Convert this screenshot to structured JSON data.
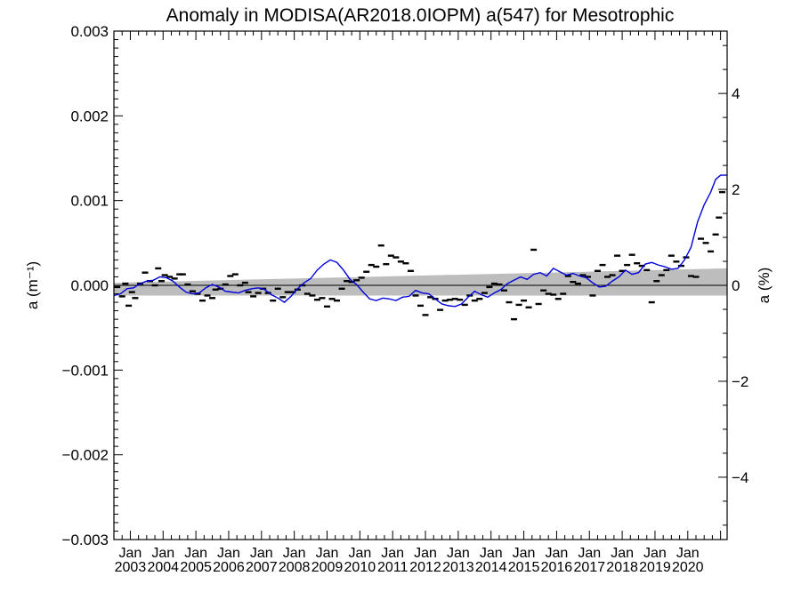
{
  "chart_data": {
    "type": "line",
    "title": "Anomaly in MODISA(AR2018.0IOPM) a(547) for Mesotrophic",
    "ylabel_left": "a (m⁻¹)",
    "ylabel_right": "a (%)",
    "xlim": [
      2002.5,
      2021.2
    ],
    "ylim": [
      -0.003,
      0.003
    ],
    "ylim_right": [
      -5.3,
      5.3
    ],
    "yticks_left": [
      {
        "v": -0.003,
        "label": "−0.003"
      },
      {
        "v": -0.002,
        "label": "−0.002"
      },
      {
        "v": -0.001,
        "label": "−0.001"
      },
      {
        "v": 0,
        "label": "0.000"
      },
      {
        "v": 0.001,
        "label": "0.001"
      },
      {
        "v": 0.002,
        "label": "0.002"
      },
      {
        "v": 0.003,
        "label": "0.003"
      }
    ],
    "yticks_right": [
      {
        "v": -4,
        "label": "−4"
      },
      {
        "v": -2,
        "label": "−2"
      },
      {
        "v": 0,
        "label": "0"
      },
      {
        "v": 2,
        "label": "2"
      },
      {
        "v": 4,
        "label": "4"
      }
    ],
    "xticks": [
      {
        "v": 2003,
        "month": "Jan",
        "year": "2003"
      },
      {
        "v": 2004,
        "month": "Jan",
        "year": "2004"
      },
      {
        "v": 2005,
        "month": "Jan",
        "year": "2005"
      },
      {
        "v": 2006,
        "month": "Jan",
        "year": "2006"
      },
      {
        "v": 2007,
        "month": "Jan",
        "year": "2007"
      },
      {
        "v": 2008,
        "month": "Jan",
        "year": "2008"
      },
      {
        "v": 2009,
        "month": "Jan",
        "year": "2009"
      },
      {
        "v": 2010,
        "month": "Jan",
        "year": "2010"
      },
      {
        "v": 2011,
        "month": "Jan",
        "year": "2011"
      },
      {
        "v": 2012,
        "month": "Jan",
        "year": "2012"
      },
      {
        "v": 2013,
        "month": "Jan",
        "year": "2013"
      },
      {
        "v": 2014,
        "month": "Jan",
        "year": "2014"
      },
      {
        "v": 2015,
        "month": "Jan",
        "year": "2015"
      },
      {
        "v": 2016,
        "month": "Jan",
        "year": "2016"
      },
      {
        "v": 2017,
        "month": "Jan",
        "year": "2017"
      },
      {
        "v": 2018,
        "month": "Jan",
        "year": "2018"
      },
      {
        "v": 2019,
        "month": "Jan",
        "year": "2019"
      },
      {
        "v": 2020,
        "month": "Jan",
        "year": "2020"
      }
    ],
    "band": {
      "x": [
        2002.5,
        2021.2
      ],
      "lower": [
        -0.00012,
        -0.00012
      ],
      "upper": [
        3e-05,
        0.0002
      ]
    },
    "zero_line": 0,
    "series": [
      {
        "type": "line",
        "color": "#0000dd",
        "x": [
          2002.5,
          2002.7,
          2002.9,
          2003.1,
          2003.3,
          2003.5,
          2003.7,
          2003.9,
          2004.1,
          2004.3,
          2004.5,
          2004.7,
          2004.9,
          2005.1,
          2005.3,
          2005.5,
          2005.7,
          2005.9,
          2006.1,
          2006.3,
          2006.5,
          2006.7,
          2006.9,
          2007.1,
          2007.3,
          2007.5,
          2007.7,
          2007.9,
          2008.1,
          2008.3,
          2008.5,
          2008.7,
          2008.9,
          2009.1,
          2009.3,
          2009.5,
          2009.7,
          2009.9,
          2010.1,
          2010.3,
          2010.5,
          2010.7,
          2010.9,
          2011.1,
          2011.3,
          2011.5,
          2011.7,
          2011.9,
          2012.1,
          2012.3,
          2012.5,
          2012.7,
          2012.9,
          2013.1,
          2013.3,
          2013.5,
          2013.7,
          2013.9,
          2014.1,
          2014.3,
          2014.5,
          2014.7,
          2014.9,
          2015.1,
          2015.3,
          2015.5,
          2015.7,
          2015.9,
          2016.1,
          2016.3,
          2016.5,
          2016.7,
          2016.9,
          2017.1,
          2017.3,
          2017.5,
          2017.7,
          2017.9,
          2018.1,
          2018.3,
          2018.5,
          2018.7,
          2018.9,
          2019.1,
          2019.3,
          2019.5,
          2019.7,
          2019.9,
          2020.1,
          2020.3,
          2020.5,
          2020.7,
          2020.85,
          2021.0,
          2021.2
        ],
        "y": [
          -0.00012,
          -0.0001,
          -4e-05,
          -3e-05,
          2e-05,
          5e-05,
          6e-05,
          0.0001,
          9e-05,
          5e-05,
          -2e-05,
          -8e-05,
          -0.0001,
          -9e-05,
          -3e-05,
          1e-05,
          -2e-05,
          -7e-05,
          -8e-05,
          -9e-05,
          -6e-05,
          -4e-05,
          -3e-05,
          -5e-05,
          -0.00011,
          -0.00015,
          -0.0002,
          -0.00013,
          -4e-05,
          3e-05,
          8e-05,
          0.00018,
          0.00025,
          0.0003,
          0.00027,
          0.00018,
          7e-05,
          1e-05,
          -8e-05,
          -0.00016,
          -0.00018,
          -0.00015,
          -0.00016,
          -0.00018,
          -0.00014,
          -0.00013,
          -6e-05,
          -9e-05,
          -0.0001,
          -0.00016,
          -0.00022,
          -0.00024,
          -0.00025,
          -0.00022,
          -0.00014,
          -7e-05,
          -0.00011,
          -0.00014,
          -9e-05,
          -5e-05,
          2e-05,
          6e-05,
          0.0001,
          7e-05,
          0.00013,
          0.00015,
          0.00011,
          0.0002,
          0.00016,
          0.00012,
          0.00014,
          0.00011,
          9e-05,
          3e-05,
          -2e-05,
          -1e-05,
          5e-05,
          0.0001,
          0.00018,
          0.00013,
          0.00015,
          0.00025,
          0.00027,
          0.00024,
          0.00022,
          0.00019,
          0.0002,
          0.0003,
          0.00045,
          0.00075,
          0.00095,
          0.0011,
          0.00125,
          0.0013,
          0.0013
        ]
      },
      {
        "type": "scatter",
        "marker": "dash",
        "color": "#000000",
        "x": [
          2002.6,
          2002.75,
          2002.85,
          2002.95,
          2003.05,
          2003.15,
          2003.3,
          2003.45,
          2003.6,
          2003.75,
          2003.85,
          2003.95,
          2004.05,
          2004.2,
          2004.35,
          2004.5,
          2004.6,
          2004.75,
          2004.9,
          2005.05,
          2005.2,
          2005.35,
          2005.5,
          2005.6,
          2005.75,
          2005.9,
          2006.05,
          2006.2,
          2006.35,
          2006.5,
          2006.6,
          2006.75,
          2006.9,
          2007.05,
          2007.2,
          2007.35,
          2007.5,
          2007.65,
          2007.8,
          2007.95,
          2008.1,
          2008.25,
          2008.4,
          2008.55,
          2008.7,
          2008.85,
          2009.0,
          2009.15,
          2009.3,
          2009.45,
          2009.6,
          2009.75,
          2009.9,
          2010.05,
          2010.2,
          2010.35,
          2010.5,
          2010.65,
          2010.8,
          2010.95,
          2011.1,
          2011.25,
          2011.4,
          2011.55,
          2011.7,
          2011.85,
          2012.0,
          2012.15,
          2012.3,
          2012.45,
          2012.6,
          2012.75,
          2012.9,
          2013.05,
          2013.2,
          2013.35,
          2013.5,
          2013.65,
          2013.8,
          2013.95,
          2014.1,
          2014.25,
          2014.4,
          2014.55,
          2014.7,
          2014.85,
          2015.0,
          2015.15,
          2015.3,
          2015.45,
          2015.6,
          2015.75,
          2015.9,
          2016.05,
          2016.2,
          2016.35,
          2016.5,
          2016.65,
          2016.8,
          2016.95,
          2017.1,
          2017.25,
          2017.4,
          2017.55,
          2017.7,
          2017.85,
          2018.0,
          2018.15,
          2018.3,
          2018.45,
          2018.6,
          2018.75,
          2018.9,
          2019.05,
          2019.2,
          2019.35,
          2019.5,
          2019.65,
          2019.8,
          2019.95,
          2020.1,
          2020.25,
          2020.4,
          2020.55,
          2020.7,
          2020.85,
          2020.95,
          2021.05
        ],
        "y": [
          -2e-05,
          -0.00013,
          2e-05,
          -0.00024,
          -8e-05,
          -0.00015,
          2e-05,
          0.00015,
          5e-05,
          0.0,
          0.0002,
          5e-05,
          0.00012,
          0.0001,
          8e-05,
          0.00013,
          0.00013,
          1e-05,
          -7e-05,
          -0.0001,
          -0.00018,
          -0.00012,
          -0.00015,
          -5e-05,
          -4e-05,
          1e-05,
          0.00011,
          0.00013,
          0.0,
          3e-05,
          -8e-05,
          -0.00013,
          -9e-05,
          -4e-05,
          -9e-05,
          -0.00018,
          -4e-05,
          -0.00014,
          -8e-05,
          -8e-05,
          -5e-05,
          0.0,
          -0.0001,
          -0.00012,
          -0.00017,
          -0.00015,
          -0.00025,
          -0.00016,
          -0.00018,
          -4e-05,
          5e-05,
          4e-05,
          6e-05,
          9e-05,
          0.00016,
          0.00024,
          0.00022,
          0.00047,
          0.00025,
          0.00035,
          0.00033,
          0.00028,
          0.00026,
          0.00017,
          -0.00012,
          -0.00024,
          -0.00035,
          -0.00014,
          -0.00016,
          -0.00029,
          -0.00018,
          -0.00017,
          -0.00016,
          -0.00017,
          -0.00023,
          -0.00012,
          -0.00018,
          -0.00016,
          -9e-05,
          -2e-05,
          2e-05,
          1e-05,
          -6e-05,
          -0.0002,
          -0.0004,
          -0.00023,
          -0.00018,
          -0.00026,
          0.00042,
          -0.00022,
          -6e-05,
          -0.0001,
          -0.00011,
          -0.00016,
          -0.0001,
          0.00011,
          4e-05,
          2e-05,
          0.00012,
          0.0001,
          -0.00012,
          0.00017,
          0.00024,
          0.0001,
          0.00012,
          0.00035,
          0.00017,
          0.00024,
          0.00036,
          0.00026,
          0.00023,
          0.00018,
          -0.0002,
          5e-05,
          0.00012,
          0.00018,
          0.00035,
          0.00028,
          0.00023,
          0.00033,
          0.00011,
          0.0001,
          0.00055,
          0.0005,
          0.0004,
          0.0006,
          0.0008,
          0.0011
        ]
      }
    ]
  }
}
